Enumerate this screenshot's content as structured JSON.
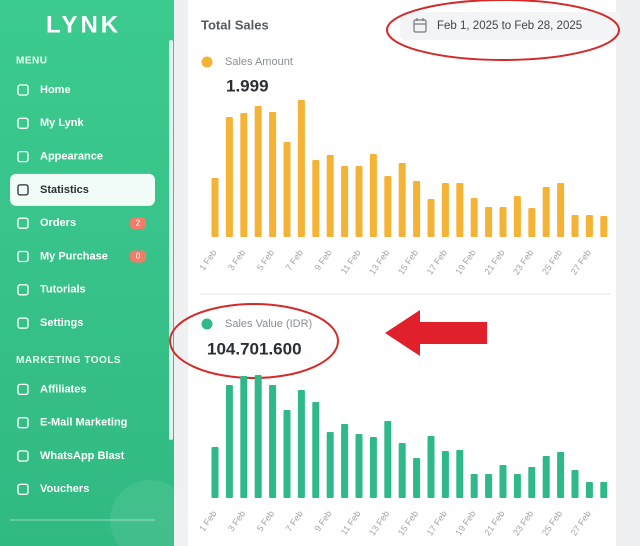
{
  "sidebar": {
    "logo": "LYNK",
    "sections": [
      {
        "title": "MENU",
        "items": [
          {
            "label": "Home"
          },
          {
            "label": "My Lynk"
          },
          {
            "label": "Appearance"
          },
          {
            "label": "Statistics",
            "active": true
          },
          {
            "label": "Orders",
            "badge": 2
          },
          {
            "label": "My Purchase",
            "badge": 0
          },
          {
            "label": "Tutorials"
          },
          {
            "label": "Settings"
          }
        ]
      },
      {
        "title": "MARKETING TOOLS",
        "items": [
          {
            "label": "Affiliates"
          },
          {
            "label": "E-Mail Marketing"
          },
          {
            "label": "WhatsApp Blast"
          },
          {
            "label": "Vouchers"
          }
        ]
      }
    ]
  },
  "header": {
    "title": "Total Sales",
    "date_range": "Feb 1, 2025 to Feb 28, 2025"
  },
  "chart_data": [
    {
      "type": "bar",
      "name": "Sales Amount",
      "total": "1.999",
      "color": "#f5b335",
      "categories": [
        "1 Feb",
        null,
        "3 Feb",
        null,
        "5 Feb",
        null,
        "7 Feb",
        null,
        "9 Feb",
        null,
        "11 Feb",
        null,
        "13 Feb",
        null,
        "15 Feb",
        null,
        "17 Feb",
        null,
        "19 Feb",
        null,
        "21 Feb",
        null,
        "23 Feb",
        null,
        "25 Feb",
        null,
        "27 Feb",
        null
      ],
      "values": [
        59,
        120,
        124,
        131,
        125,
        95,
        137,
        77,
        82,
        71,
        71,
        83,
        61,
        74,
        56,
        38,
        54,
        54,
        39,
        30,
        30,
        41,
        29,
        50,
        54,
        22,
        22,
        21
      ]
    },
    {
      "type": "bar",
      "name": "Sales Value (IDR)",
      "total": "104.701.600",
      "color": "#2fb889",
      "categories": [
        "1 Feb",
        null,
        "3 Feb",
        null,
        "5 Feb",
        null,
        "7 Feb",
        null,
        "9 Feb",
        null,
        "11 Feb",
        null,
        "13 Feb",
        null,
        "15 Feb",
        null,
        "17 Feb",
        null,
        "19 Feb",
        null,
        "21 Feb",
        null,
        "23 Feb",
        null,
        "25 Feb",
        null,
        "27 Feb",
        null
      ],
      "values": [
        51,
        113,
        122,
        123,
        113,
        88,
        108,
        96,
        66,
        74,
        64,
        61,
        77,
        55,
        40,
        62,
        47,
        48,
        24,
        24,
        33,
        24,
        31,
        42,
        46,
        28,
        16,
        16
      ]
    }
  ]
}
